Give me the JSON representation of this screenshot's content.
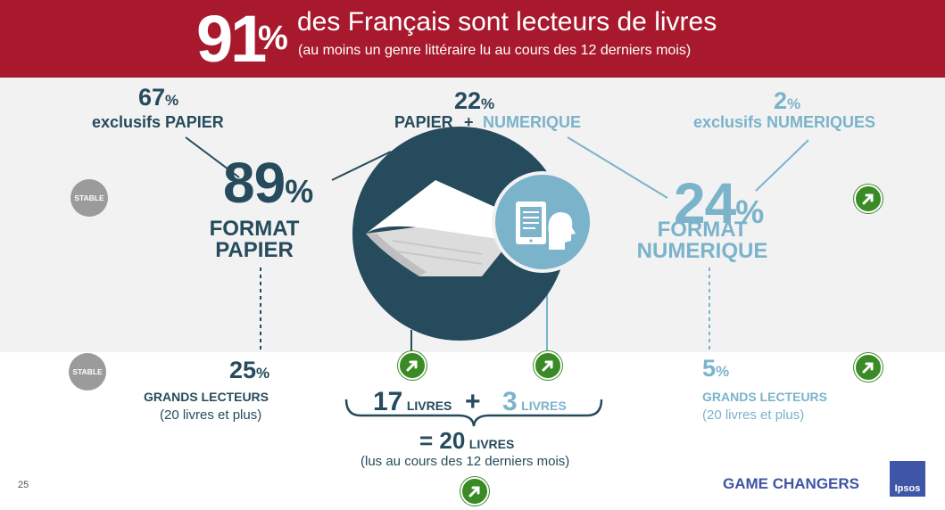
{
  "header": {
    "big_number": "91",
    "big_percent": "%",
    "title": "des Français sont lecteurs de livres",
    "subtitle": "(au moins un genre littéraire lu au cours des 12 derniers mois)"
  },
  "paper_only": {
    "value": "67",
    "percent": "%",
    "label": "exclusifs PAPIER"
  },
  "paper_digital": {
    "value": "22",
    "percent": "%",
    "label_paper": "PAPIER",
    "plus": "+",
    "label_digital": "NUMERIQUE"
  },
  "digital_only": {
    "value": "2",
    "percent": "%",
    "label": "exclusifs NUMERIQUES"
  },
  "paper_format": {
    "value": "89",
    "percent": "%",
    "line1": "FORMAT",
    "line2": "PAPIER",
    "badge": "STABLE"
  },
  "digital_format": {
    "value": "24",
    "percent": "%",
    "line1": "FORMAT",
    "line2": "NUMERIQUE"
  },
  "paper_heavy": {
    "value": "25",
    "percent": "%",
    "label": "GRANDS LECTEURS",
    "detail": "(20 livres et plus)",
    "badge": "STABLE"
  },
  "digital_heavy": {
    "value": "5",
    "percent": "%",
    "label": "GRANDS LECTEURS",
    "detail": "(20 livres et plus)"
  },
  "books": {
    "paper_count": "17",
    "paper_unit": "LIVRES",
    "plus": "+",
    "digital_count": "3",
    "digital_unit": "LIVRES",
    "total_prefix": "= 20",
    "total_unit": "LIVRES",
    "note": "(lus au cours des 12 derniers mois)"
  },
  "footer": {
    "page_number": "25",
    "brand": "GAME CHANGERS",
    "logo": "Ipsos"
  },
  "colors": {
    "banner": "#a8192e",
    "dark": "#264b5d",
    "light": "#7bb3cb",
    "up": "#3a8a26",
    "stable": "#9b9b9b"
  },
  "icons": {
    "trend": "arrow-up-right-icon",
    "book": "book-icon",
    "tablet": "tablet-reader-icon"
  }
}
